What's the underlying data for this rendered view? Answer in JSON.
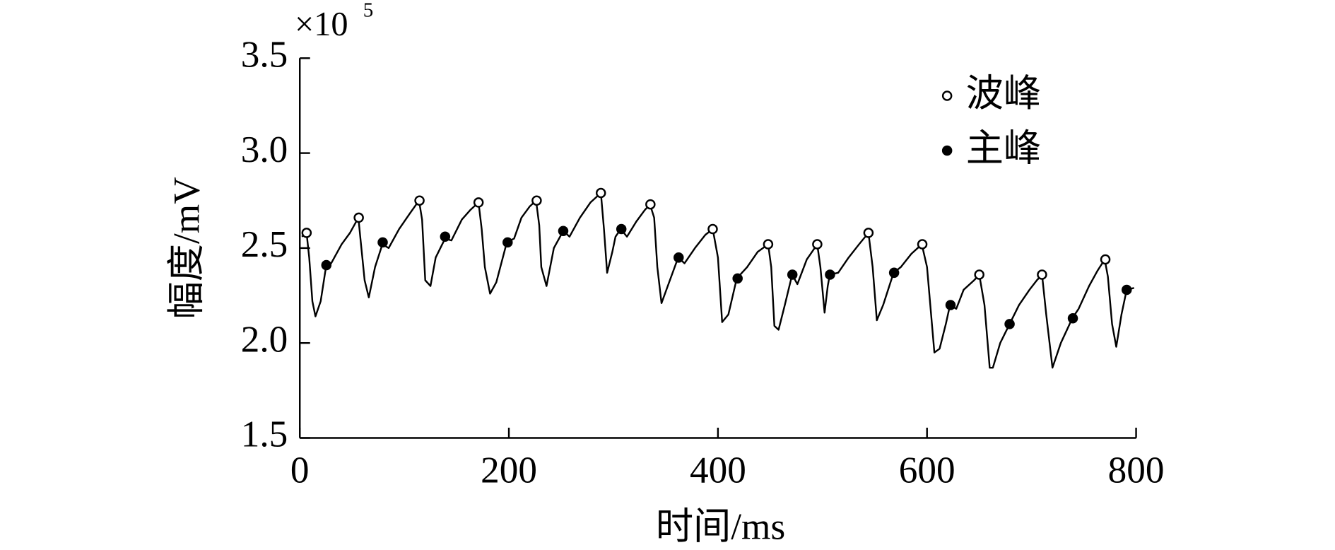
{
  "chart_data": {
    "type": "line",
    "x_label": "时间/ms",
    "y_label": "幅度/mV",
    "y_multiplier": {
      "base": "×10",
      "exponent": "5"
    },
    "xlim": [
      0,
      800
    ],
    "xticks": [
      0,
      200,
      400,
      600,
      800
    ],
    "ylim": [
      1.5,
      3.5
    ],
    "yticks": [
      1.5,
      {
        "value": 2,
        "label": "2.0"
      },
      2.5,
      {
        "value": 3,
        "label": "3.0"
      },
      3.5
    ],
    "grid": false,
    "legend": "upper right",
    "series": [
      {
        "type": "line",
        "color": "#000000",
        "x": [
          2,
          6.5,
          9,
          12,
          15,
          20,
          25,
          30,
          40,
          48,
          56,
          58,
          62,
          66,
          72,
          79,
          85,
          95,
          105,
          114,
          117,
          120,
          125,
          130,
          139,
          145,
          155,
          163,
          171,
          174,
          177,
          182,
          188,
          198,
          205,
          212,
          220,
          226,
          229,
          231,
          236,
          243,
          252,
          258,
          268,
          278,
          288,
          291,
          294,
          299,
          302,
          307,
          313,
          322,
          330,
          335,
          339,
          342,
          346,
          352,
          362,
          368,
          378,
          388,
          395,
          400,
          404,
          410,
          418,
          428,
          438,
          448,
          451,
          454,
          458,
          464,
          471,
          476,
          485,
          495,
          498,
          502,
          505,
          507,
          515,
          525,
          535,
          544,
          548,
          552,
          558,
          568,
          575,
          585,
          595,
          600,
          607,
          612,
          618,
          622,
          628,
          635,
          645,
          650,
          655,
          660,
          663,
          670,
          679,
          688,
          698,
          705,
          710,
          714,
          720,
          728,
          739,
          745,
          755,
          763,
          770,
          773,
          777,
          781,
          786,
          791,
          798
        ],
        "values": [
          2.56,
          2.58,
          2.45,
          2.22,
          2.14,
          2.22,
          2.4,
          2.42,
          2.52,
          2.58,
          2.66,
          2.55,
          2.33,
          2.24,
          2.4,
          2.52,
          2.5,
          2.6,
          2.68,
          2.75,
          2.65,
          2.33,
          2.3,
          2.45,
          2.55,
          2.54,
          2.65,
          2.7,
          2.74,
          2.6,
          2.4,
          2.26,
          2.32,
          2.53,
          2.55,
          2.66,
          2.72,
          2.75,
          2.62,
          2.4,
          2.3,
          2.5,
          2.59,
          2.56,
          2.66,
          2.74,
          2.79,
          2.6,
          2.37,
          2.48,
          2.56,
          2.6,
          2.56,
          2.64,
          2.7,
          2.73,
          2.66,
          2.4,
          2.21,
          2.3,
          2.45,
          2.42,
          2.5,
          2.57,
          2.6,
          2.45,
          2.11,
          2.15,
          2.34,
          2.4,
          2.48,
          2.52,
          2.4,
          2.09,
          2.07,
          2.2,
          2.36,
          2.31,
          2.44,
          2.52,
          2.4,
          2.16,
          2.3,
          2.36,
          2.37,
          2.45,
          2.52,
          2.58,
          2.4,
          2.12,
          2.2,
          2.37,
          2.4,
          2.47,
          2.52,
          2.4,
          1.95,
          1.97,
          2.1,
          2.2,
          2.18,
          2.28,
          2.33,
          2.36,
          2.2,
          1.87,
          1.87,
          2.0,
          2.1,
          2.2,
          2.28,
          2.33,
          2.36,
          2.15,
          1.87,
          2.0,
          2.13,
          2.18,
          2.3,
          2.38,
          2.44,
          2.35,
          2.1,
          1.98,
          2.15,
          2.28,
          2.29
        ]
      },
      {
        "type": "scatter",
        "name": "波峰",
        "marker": "open",
        "color": "#000000",
        "x": [
          6.5,
          56.4,
          114.5,
          171,
          226.6,
          288,
          335.4,
          395,
          448,
          495,
          544,
          595.5,
          650,
          710,
          770.6
        ],
        "values": [
          2.58,
          2.66,
          2.75,
          2.74,
          2.75,
          2.79,
          2.73,
          2.6,
          2.52,
          2.52,
          2.58,
          2.52,
          2.36,
          2.36,
          2.44
        ]
      },
      {
        "type": "scatter",
        "name": "主峰",
        "marker": "filled",
        "color": "#000000",
        "x": [
          25.4,
          79.3,
          139,
          198.8,
          252,
          307.6,
          362.4,
          418.8,
          471.2,
          507.2,
          568.5,
          622.5,
          679,
          739.5,
          791
        ],
        "values": [
          2.41,
          2.53,
          2.56,
          2.53,
          2.59,
          2.6,
          2.45,
          2.34,
          2.36,
          2.36,
          2.37,
          2.2,
          2.1,
          2.13,
          2.28
        ]
      }
    ]
  }
}
